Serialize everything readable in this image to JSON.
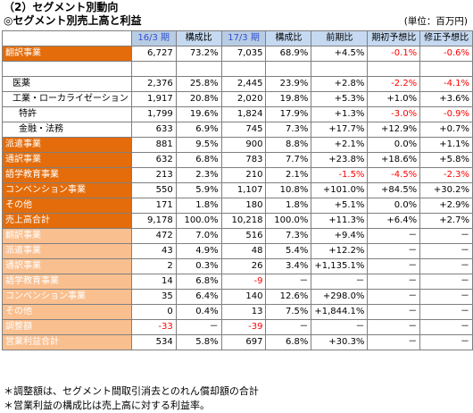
{
  "title": "（2）セグメント別動向",
  "subtitle": "◎セグメント別売上高と利益",
  "unit": "(単位：百万円)",
  "header": [
    "",
    "16/3 期",
    "構成比",
    "17/3 期",
    "構成比",
    "前期比",
    "期初予想比",
    "修正予想比"
  ],
  "rows": [
    {
      "label": "翻訳事業",
      "style": "dark",
      "cells": [
        "6,727",
        "73.2%",
        "7,035",
        "68.9%",
        "+4.5%",
        "-0.1%",
        "-0.6%"
      ],
      "red": [
        5,
        6
      ]
    },
    {
      "label": "",
      "style": "blank",
      "cells": [
        "",
        "",
        "",
        "",
        "",
        "",
        ""
      ],
      "red": []
    },
    {
      "label": "医薬",
      "style": "sub1",
      "cells": [
        "2,376",
        "25.8%",
        "2,445",
        "23.9%",
        "+2.8%",
        "-2.2%",
        "-4.1%"
      ],
      "red": [
        5,
        6
      ]
    },
    {
      "label": "工業・ローカライゼーション",
      "style": "sub1",
      "cells": [
        "1,917",
        "20.8%",
        "2,020",
        "19.8%",
        "+5.3%",
        "+1.0%",
        "+3.6%"
      ],
      "red": []
    },
    {
      "label": "特許",
      "style": "sub2",
      "cells": [
        "1,799",
        "19.6%",
        "1,824",
        "17.9%",
        "+1.3%",
        "-3.0%",
        "-0.9%"
      ],
      "red": [
        5,
        6
      ]
    },
    {
      "label": "金融・法務",
      "style": "sub2",
      "cells": [
        "633",
        "6.9%",
        "745",
        "7.3%",
        "+17.7%",
        "+12.9%",
        "+0.7%"
      ],
      "red": []
    },
    {
      "label": "派遣事業",
      "style": "dark",
      "cells": [
        "881",
        "9.5%",
        "900",
        "8.8%",
        "+2.1%",
        "0.0%",
        "+1.1%"
      ],
      "red": []
    },
    {
      "label": "通訳事業",
      "style": "dark",
      "cells": [
        "632",
        "6.8%",
        "783",
        "7.7%",
        "+23.8%",
        "+18.6%",
        "+5.8%"
      ],
      "red": []
    },
    {
      "label": "語学教育事業",
      "style": "dark",
      "cells": [
        "213",
        "2.3%",
        "210",
        "2.1%",
        "-1.5%",
        "-4.5%",
        "-2.3%"
      ],
      "red": [
        4,
        5,
        6
      ]
    },
    {
      "label": "コンベンション事業",
      "style": "dark",
      "cells": [
        "550",
        "5.9%",
        "1,107",
        "10.8%",
        "+101.0%",
        "+84.5%",
        "+30.2%"
      ],
      "red": []
    },
    {
      "label": "その他",
      "style": "dark",
      "cells": [
        "171",
        "1.8%",
        "180",
        "1.8%",
        "+5.1%",
        "0.0%",
        "+2.9%"
      ],
      "red": []
    },
    {
      "label": "売上高合計",
      "style": "dark",
      "cells": [
        "9,178",
        "100.0%",
        "10,218",
        "100.0%",
        "+11.3%",
        "+6.4%",
        "+2.7%"
      ],
      "red": []
    },
    {
      "label": "翻訳事業",
      "style": "light",
      "cells": [
        "472",
        "7.0%",
        "516",
        "7.3%",
        "+9.4%",
        "－",
        "－"
      ],
      "red": []
    },
    {
      "label": "派遣事業",
      "style": "light",
      "cells": [
        "43",
        "4.9%",
        "48",
        "5.4%",
        "+12.2%",
        "－",
        "－"
      ],
      "red": []
    },
    {
      "label": "通訳事業",
      "style": "light",
      "cells": [
        "2",
        "0.3%",
        "26",
        "3.4%",
        "+1,135.1%",
        "－",
        "－"
      ],
      "red": []
    },
    {
      "label": "語学教育事業",
      "style": "light",
      "cells": [
        "14",
        "6.8%",
        "-9",
        "－",
        "－",
        "－",
        "－"
      ],
      "red": [
        2
      ]
    },
    {
      "label": "コンベンション事業",
      "style": "light",
      "cells": [
        "35",
        "6.4%",
        "140",
        "12.6%",
        "+298.0%",
        "－",
        "－"
      ],
      "red": []
    },
    {
      "label": "その他",
      "style": "light",
      "cells": [
        "0",
        "0.4%",
        "13",
        "7.5%",
        "+1,844.1%",
        "－",
        "－"
      ],
      "red": []
    },
    {
      "label": "調整額",
      "style": "light",
      "cells": [
        "-33",
        "－",
        "-39",
        "－",
        "－",
        "－",
        "－"
      ],
      "red": [
        0,
        2
      ]
    },
    {
      "label": "営業利益合計",
      "style": "light",
      "cells": [
        "534",
        "5.8%",
        "697",
        "6.8%",
        "+30.3%",
        "－",
        "－"
      ],
      "red": []
    }
  ],
  "notes": [
    "＊調整額は、セグメント間取引消去とのれん償却額の合計",
    "＊営業利益の構成比は売上高に対する利益率。"
  ]
}
